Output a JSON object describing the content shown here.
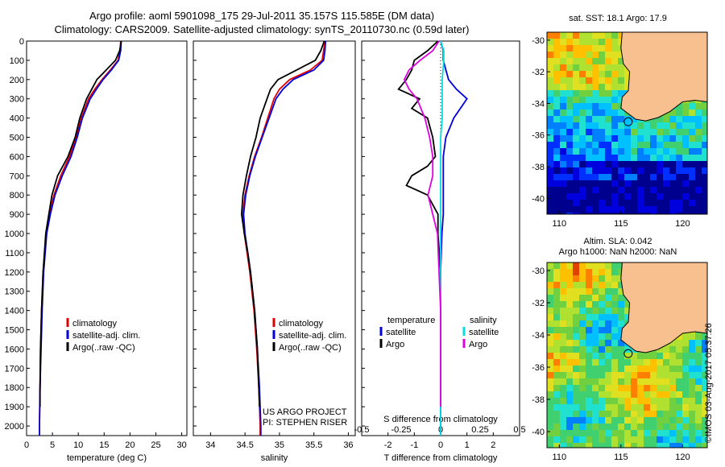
{
  "header": {
    "line1": "Argo profile: aoml 5901098_175 29-Jul-2011 35.157S 115.585E (DM data)",
    "line2": "Climatology: CARS2009. Satellite-adjusted climatology: synTS_20110730.nc (0.59d later)"
  },
  "credit": {
    "project": "US ARGO PROJECT",
    "pi": "PI: STEPHEN RISER",
    "timestamp": "©IMOS 03-Aug-2017 05:37:26"
  },
  "colors": {
    "climatology": "#e00000",
    "satellite": "#0000dd",
    "argo": "#000000",
    "salinity_sat": "#00e0e0",
    "salinity_argo": "#e000e0",
    "land": "#f9c08f"
  },
  "chart_data": [
    {
      "type": "line",
      "xlabel": "temperature (deg C)",
      "ylabel": "",
      "xlim": [
        0,
        31
      ],
      "ylim": [
        0,
        2050
      ],
      "x_ticks": [
        0,
        5,
        10,
        15,
        20,
        25,
        30
      ],
      "y_ticks": [
        0,
        100,
        200,
        300,
        400,
        500,
        600,
        700,
        800,
        900,
        1000,
        1100,
        1200,
        1300,
        1400,
        1500,
        1600,
        1700,
        1800,
        1900,
        2000
      ],
      "legend": [
        "climatology",
        "satellite-adj. clim.",
        "Argo(..raw -QC)"
      ],
      "legend_position": "lower-center",
      "series": [
        {
          "name": "climatology",
          "depth": [
            0,
            50,
            100,
            150,
            200,
            250,
            300,
            400,
            500,
            600,
            700,
            800,
            900,
            1000,
            1200,
            1400,
            1600,
            1800,
            2000,
            2050
          ],
          "values": [
            18.2,
            18.1,
            17.7,
            16.2,
            14.6,
            13.2,
            12.0,
            10.6,
            9.6,
            8.3,
            6.6,
            5.3,
            4.4,
            3.8,
            3.2,
            2.9,
            2.7,
            2.6,
            2.5,
            2.5
          ]
        },
        {
          "name": "satellite-adj. clim.",
          "depth": [
            0,
            50,
            100,
            150,
            200,
            250,
            300,
            400,
            500,
            600,
            700,
            800,
            900,
            1000,
            1200,
            1400,
            1600,
            1800,
            2000,
            2050
          ],
          "values": [
            18.3,
            18.2,
            17.8,
            16.4,
            14.8,
            13.5,
            12.3,
            10.8,
            9.8,
            8.6,
            6.9,
            5.5,
            4.6,
            3.9,
            3.3,
            3.0,
            2.8,
            2.6,
            2.5,
            2.5
          ]
        },
        {
          "name": "Argo(..raw -QC)",
          "depth": [
            0,
            50,
            100,
            150,
            200,
            250,
            300,
            400,
            500,
            600,
            700,
            800,
            900,
            1000,
            1200,
            1400,
            1600,
            1800,
            1900
          ],
          "values": [
            18.3,
            18.0,
            17.2,
            15.4,
            13.6,
            12.6,
            11.6,
            10.3,
            9.4,
            8.0,
            6.0,
            4.9,
            4.3,
            3.7,
            3.2,
            2.9,
            2.7,
            2.6,
            2.6
          ]
        }
      ]
    },
    {
      "type": "line",
      "xlabel": "salinity",
      "ylabel": "",
      "xlim": [
        33.75,
        36.1
      ],
      "ylim": [
        0,
        2050
      ],
      "x_ticks": [
        34,
        34.5,
        35,
        35.5,
        36
      ],
      "legend": [
        "climatology",
        "satellite-adj. clim.",
        "Argo(..raw -QC)"
      ],
      "legend_position": "lower-center",
      "series": [
        {
          "name": "climatology",
          "depth": [
            0,
            50,
            100,
            150,
            200,
            250,
            300,
            400,
            500,
            600,
            700,
            800,
            900,
            1000,
            1100,
            1200,
            1400,
            1600,
            1800,
            2000,
            2050
          ],
          "values": [
            35.66,
            35.64,
            35.62,
            35.45,
            35.15,
            35.0,
            34.92,
            34.83,
            34.74,
            34.64,
            34.56,
            34.5,
            34.47,
            34.49,
            34.53,
            34.57,
            34.63,
            34.67,
            34.7,
            34.72,
            34.72
          ]
        },
        {
          "name": "satellite-adj. clim.",
          "depth": [
            0,
            50,
            100,
            150,
            200,
            250,
            300,
            400,
            500,
            600,
            700,
            800,
            900,
            1000,
            1100,
            1200,
            1400,
            1600,
            1800,
            2000,
            2050
          ],
          "values": [
            35.67,
            35.66,
            35.64,
            35.5,
            35.2,
            35.05,
            34.95,
            34.85,
            34.75,
            34.65,
            34.57,
            34.51,
            34.48,
            34.5,
            34.54,
            34.58,
            34.64,
            34.68,
            34.71,
            34.73,
            34.73
          ]
        },
        {
          "name": "Argo(..raw -QC)",
          "depth": [
            0,
            50,
            100,
            150,
            200,
            250,
            300,
            400,
            500,
            600,
            700,
            800,
            900,
            1000,
            1100,
            1200,
            1400,
            1600,
            1800,
            1900
          ],
          "values": [
            35.65,
            35.6,
            35.52,
            35.25,
            34.98,
            34.87,
            34.82,
            34.72,
            34.66,
            34.58,
            34.52,
            34.47,
            34.45,
            34.49,
            34.54,
            34.58,
            34.64,
            34.68,
            34.7,
            34.71
          ]
        }
      ]
    },
    {
      "type": "line",
      "xlabel": "T difference from climatology",
      "xlabel_top": "S difference from climatology",
      "ylabel": "",
      "xlim": [
        -3,
        3
      ],
      "ylim": [
        0,
        2050
      ],
      "x_ticks": [
        -2,
        -1,
        0,
        1,
        2
      ],
      "x_ticks_top": [
        "-0.5",
        "-0.25",
        "0",
        "0.25",
        "0.5"
      ],
      "legend_temperature_title": "temperature",
      "legend_salinity_title": "salinity",
      "legend_temperature": [
        "satellite",
        "Argo"
      ],
      "legend_salinity": [
        "satellite",
        "Argo"
      ],
      "legend_position": "lower-center",
      "series": [
        {
          "name": "temperature satellite",
          "depth": [
            0,
            50,
            100,
            150,
            200,
            250,
            300,
            400,
            500,
            600,
            700,
            800,
            900,
            1000,
            1200,
            1400,
            1600,
            1800,
            2000,
            2050
          ],
          "values": [
            0.0,
            0.1,
            0.1,
            0.2,
            0.3,
            0.6,
            1.0,
            0.5,
            0.2,
            0.1,
            0.1,
            0.1,
            0.1,
            0.05,
            0.0,
            0.0,
            0.0,
            0.0,
            0.0,
            0.0
          ]
        },
        {
          "name": "temperature Argo",
          "depth": [
            0,
            50,
            100,
            150,
            200,
            250,
            300,
            350,
            400,
            500,
            600,
            650,
            700,
            750,
            800,
            900,
            1000,
            1200,
            1400,
            1600,
            1800,
            1900
          ],
          "values": [
            -0.1,
            -0.5,
            -1.0,
            -1.1,
            -1.3,
            -1.6,
            -0.8,
            -1.1,
            -0.5,
            -0.3,
            -0.2,
            -0.5,
            -1.1,
            -1.3,
            -0.5,
            -0.1,
            -0.1,
            0.0,
            0.0,
            0.0,
            0.0,
            0.0
          ]
        },
        {
          "name": "salinity satellite",
          "depth": [
            0,
            50,
            100,
            200,
            300,
            400,
            500,
            700,
            900,
            1100,
            1300,
            1500,
            1700,
            1900,
            2050
          ],
          "values": [
            0.0,
            0.02,
            0.02,
            0.01,
            0.01,
            0.01,
            0.0,
            0.0,
            0.0,
            0.0,
            0.0,
            0.0,
            0.0,
            0.0,
            0.0
          ]
        },
        {
          "name": "salinity Argo",
          "depth": [
            0,
            50,
            100,
            150,
            200,
            250,
            300,
            400,
            500,
            600,
            700,
            800,
            900,
            1000,
            1200,
            1400,
            1600,
            1800,
            1900
          ],
          "values": [
            -0.01,
            -0.05,
            -0.13,
            -0.2,
            -0.23,
            -0.2,
            -0.15,
            -0.1,
            -0.07,
            -0.05,
            -0.05,
            -0.08,
            -0.05,
            -0.02,
            -0.01,
            0.0,
            0.0,
            0.0,
            0.0
          ]
        }
      ]
    },
    {
      "type": "heatmap",
      "title": "sat. SST: 18.1 Argo: 17.9",
      "xlim": [
        109,
        122
      ],
      "ylim": [
        -41,
        -29.5
      ],
      "x_ticks": [
        110,
        115,
        120
      ],
      "y_ticks": [
        -30,
        -32,
        -34,
        -36,
        -38,
        -40
      ],
      "marker": {
        "lon": 115.585,
        "lat": -35.157
      }
    },
    {
      "type": "heatmap",
      "title_line1": "Altim. SLA: 0.042",
      "title_line2": "Argo h1000: NaN h2000: NaN",
      "xlim": [
        109,
        122
      ],
      "ylim": [
        -41,
        -29.5
      ],
      "x_ticks": [
        110,
        115,
        120
      ],
      "y_ticks": [
        -30,
        -32,
        -34,
        -36,
        -38,
        -40
      ],
      "marker": {
        "lon": 115.585,
        "lat": -35.157
      }
    }
  ]
}
